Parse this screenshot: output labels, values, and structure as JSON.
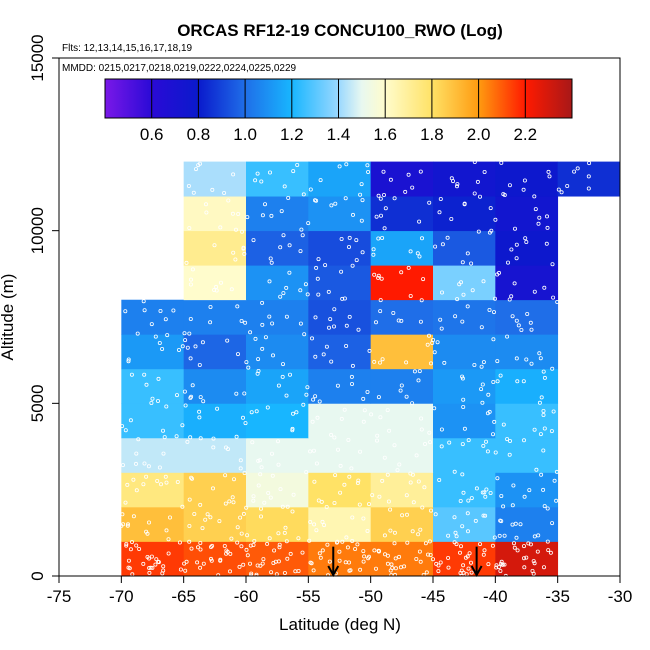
{
  "chart_data": {
    "type": "heatmap",
    "title": "ORCAS RF12-19 CONCU100_RWO (Log)",
    "subtitle_flights": "Flts: 12,13,14,15,16,17,18,19",
    "subtitle_dates": "MMDD: 0215,0217,0218,0219,0222,0224,0225,0229",
    "xlabel": "Latitude (deg N)",
    "ylabel": "Altitude (m)",
    "xlim": [
      -75,
      -30
    ],
    "ylim": [
      0,
      15000
    ],
    "x_ticks": [
      -75,
      -70,
      -65,
      -60,
      -55,
      -50,
      -45,
      -40,
      -35,
      -30
    ],
    "y_ticks": [
      0,
      5000,
      10000,
      15000
    ],
    "colorbar": {
      "range": [
        0.4,
        2.4
      ],
      "ticks": [
        0.6,
        0.8,
        1.0,
        1.2,
        1.4,
        1.6,
        1.8,
        2.0,
        2.2
      ],
      "tick_labels": [
        "0.6",
        "0.8",
        "1.0",
        "1.2",
        "1.4",
        "1.6",
        "1.8",
        "2.0",
        "2.2"
      ]
    },
    "grid": {
      "lat_edges": [
        -70,
        -65,
        -60,
        -55,
        -50,
        -45,
        -40,
        -35,
        -30
      ],
      "alt_edges": [
        0,
        1000,
        2000,
        3000,
        4000,
        5000,
        6000,
        7000,
        8000,
        9000,
        10000,
        11000,
        12000
      ],
      "values": [
        [
          2.15,
          2.12,
          2.1,
          2.05,
          2.05,
          2.15,
          2.3,
          null
        ],
        [
          1.9,
          1.85,
          1.82,
          1.65,
          1.85,
          1.3,
          1.05,
          null
        ],
        [
          1.75,
          1.85,
          1.55,
          1.8,
          1.7,
          1.25,
          1.1,
          null
        ],
        [
          1.45,
          1.45,
          1.5,
          1.5,
          1.5,
          1.25,
          1.25,
          null
        ],
        [
          1.25,
          1.18,
          1.2,
          1.5,
          1.5,
          1.1,
          1.25,
          null
        ],
        [
          1.25,
          1.08,
          1.15,
          1.05,
          1.05,
          1.12,
          1.18,
          null
        ],
        [
          1.12,
          0.98,
          1.08,
          0.97,
          1.9,
          1.08,
          1.08,
          null
        ],
        [
          1.05,
          1.05,
          1.05,
          0.93,
          1.0,
          1.02,
          1.0,
          null
        ],
        [
          null,
          1.6,
          1.1,
          0.95,
          2.2,
          1.35,
          0.72,
          null
        ],
        [
          null,
          1.72,
          0.97,
          0.92,
          1.15,
          0.95,
          0.78,
          null
        ],
        [
          null,
          1.62,
          1.05,
          1.1,
          0.85,
          0.82,
          0.75,
          null
        ],
        [
          null,
          1.42,
          1.25,
          1.15,
          0.7,
          0.75,
          0.78,
          0.85
        ]
      ]
    },
    "markers": [
      {
        "type": "arrow-down",
        "lat": -53,
        "alt": 850
      },
      {
        "type": "arrow-down",
        "lat": -41.5,
        "alt": 850
      }
    ]
  }
}
